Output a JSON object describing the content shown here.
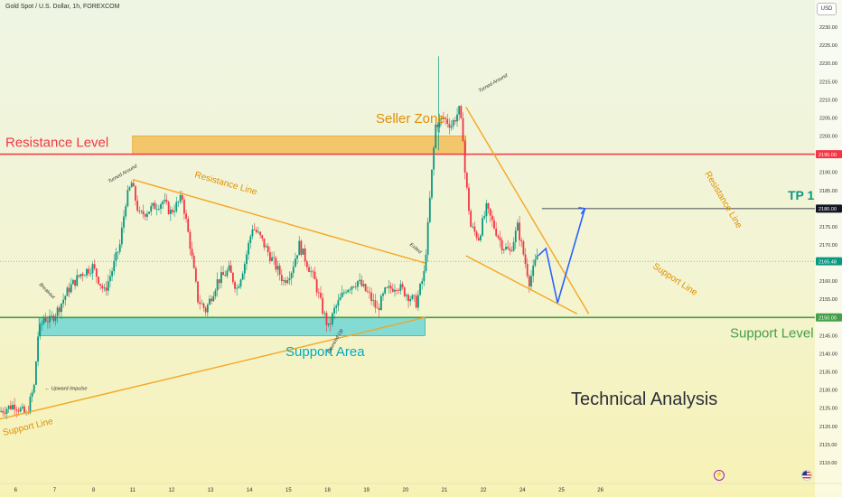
{
  "header": {
    "symbol_title": "Gold Spot / U.S. Dollar, 1h, FOREXCOM",
    "currency": "USD"
  },
  "chart_data": {
    "type": "candlestick",
    "x_unit": "day of month (March 2024)",
    "xlim": [
      5.6,
      26.5
    ],
    "ylim": [
      2105,
      2235
    ],
    "x_ticks": [
      {
        "label": "6",
        "x": 6
      },
      {
        "label": "7",
        "x": 7
      },
      {
        "label": "8",
        "x": 8
      },
      {
        "label": "11",
        "x": 9
      },
      {
        "label": "12",
        "x": 10
      },
      {
        "label": "13",
        "x": 11
      },
      {
        "label": "14",
        "x": 12
      },
      {
        "label": "15",
        "x": 13
      },
      {
        "label": "18",
        "x": 14
      },
      {
        "label": "19",
        "x": 15
      },
      {
        "label": "20",
        "x": 16
      },
      {
        "label": "21",
        "x": 17
      },
      {
        "label": "22",
        "x": 18
      },
      {
        "label": "24",
        "x": 19
      },
      {
        "label": "25",
        "x": 20
      },
      {
        "label": "26",
        "x": 21
      }
    ],
    "y_ticks": [
      2110,
      2115,
      2120,
      2125,
      2130,
      2135,
      2140,
      2145,
      2150,
      2155,
      2160,
      2165,
      2170,
      2175,
      2180,
      2185,
      2190,
      2195,
      2200,
      2205,
      2210,
      2215,
      2220,
      2225,
      2230
    ],
    "price_path": [
      [
        5.6,
        2124
      ],
      [
        6.0,
        2126
      ],
      [
        6.3,
        2123
      ],
      [
        6.5,
        2131
      ],
      [
        6.6,
        2145
      ],
      [
        6.75,
        2150
      ],
      [
        6.9,
        2149
      ],
      [
        7.1,
        2152
      ],
      [
        7.4,
        2158
      ],
      [
        7.7,
        2162
      ],
      [
        8.0,
        2164
      ],
      [
        8.3,
        2157
      ],
      [
        8.5,
        2163
      ],
      [
        8.7,
        2170
      ],
      [
        8.85,
        2182
      ],
      [
        9.0,
        2187
      ],
      [
        9.2,
        2178
      ],
      [
        9.5,
        2180
      ],
      [
        9.8,
        2182
      ],
      [
        10.0,
        2179
      ],
      [
        10.3,
        2183
      ],
      [
        10.5,
        2170
      ],
      [
        10.7,
        2155
      ],
      [
        10.9,
        2152
      ],
      [
        11.2,
        2160
      ],
      [
        11.5,
        2163
      ],
      [
        11.7,
        2158
      ],
      [
        11.9,
        2165
      ],
      [
        12.1,
        2175
      ],
      [
        12.3,
        2172
      ],
      [
        12.5,
        2168
      ],
      [
        12.7,
        2164
      ],
      [
        12.9,
        2160
      ],
      [
        13.1,
        2163
      ],
      [
        13.3,
        2170
      ],
      [
        13.5,
        2165
      ],
      [
        13.7,
        2160
      ],
      [
        13.9,
        2152
      ],
      [
        14.05,
        2147
      ],
      [
        14.2,
        2152
      ],
      [
        14.5,
        2158
      ],
      [
        14.8,
        2160
      ],
      [
        15.1,
        2156
      ],
      [
        15.3,
        2152
      ],
      [
        15.5,
        2157
      ],
      [
        15.8,
        2159
      ],
      [
        16.0,
        2157
      ],
      [
        16.3,
        2154
      ],
      [
        16.5,
        2162
      ],
      [
        16.6,
        2175
      ],
      [
        16.7,
        2190
      ],
      [
        16.8,
        2203
      ],
      [
        17.0,
        2205
      ],
      [
        17.2,
        2203
      ],
      [
        17.4,
        2207
      ],
      [
        17.5,
        2200
      ],
      [
        17.55,
        2190
      ],
      [
        17.7,
        2175
      ],
      [
        17.9,
        2172
      ],
      [
        18.1,
        2180
      ],
      [
        18.3,
        2175
      ],
      [
        18.5,
        2170
      ],
      [
        18.7,
        2168
      ],
      [
        18.9,
        2175
      ],
      [
        19.1,
        2165
      ],
      [
        19.2,
        2160
      ],
      [
        19.3,
        2163
      ],
      [
        19.4,
        2167
      ]
    ],
    "price_labels": [
      {
        "value": 2195.0,
        "text": "2195.00",
        "color": "#f23645"
      },
      {
        "value": 2180.0,
        "text": "2180.00",
        "color": "#131722"
      },
      {
        "value": 2165.48,
        "text": "2165.48",
        "color": "#089981"
      },
      {
        "value": 2150.0,
        "text": "2150.00",
        "color": "#43a047"
      }
    ],
    "annotations": {
      "resistance_level": {
        "label": "Resistance Level",
        "value": 2195,
        "color": "#f23645"
      },
      "support_level": {
        "label": "Support Level",
        "value": 2150,
        "color": "#43a047"
      },
      "seller_zone": {
        "label": "Seller Zone",
        "x_range": [
          9.0,
          17.55
        ],
        "y_range": [
          2195,
          2200
        ],
        "color": "#f5a623"
      },
      "support_area": {
        "label": "Support Area",
        "x_range": [
          6.6,
          16.5
        ],
        "y_range": [
          2145,
          2150
        ],
        "color": "#26c6da"
      },
      "support_line_main": {
        "label": "Support Line",
        "points": [
          [
            5.6,
            2122
          ],
          [
            16.5,
            2150
          ]
        ],
        "color": "#f5a623"
      },
      "resistance_line_main": {
        "label": "Resistance Line",
        "points": [
          [
            9.0,
            2188
          ],
          [
            16.5,
            2165
          ]
        ],
        "color": "#f5a623"
      },
      "resistance_line_2": {
        "label": "Resistance Line",
        "points": [
          [
            17.55,
            2208
          ],
          [
            20.7,
            2151
          ]
        ],
        "color": "#f5a623"
      },
      "support_line_2": {
        "label": "Support Line",
        "points": [
          [
            17.55,
            2167
          ],
          [
            20.4,
            2151
          ]
        ],
        "color": "#f5a623"
      },
      "projection": {
        "points": [
          [
            19.4,
            2167
          ],
          [
            19.6,
            2169
          ],
          [
            19.9,
            2154
          ],
          [
            20.6,
            2180
          ]
        ],
        "color": "#2962ff"
      },
      "tp1": {
        "label": "TP 1",
        "value": 2180,
        "color": "#089981"
      },
      "notes": [
        {
          "text": "Turned Around",
          "x": 8.4,
          "y": 2187
        },
        {
          "text": "Breakout",
          "x": 6.6,
          "y": 2159
        },
        {
          "text": "← Upward Impulse",
          "x": 6.75,
          "y": 2130
        },
        {
          "text": "Bounced Up",
          "x": 14.05,
          "y": 2140
        },
        {
          "text": "Exited",
          "x": 16.1,
          "y": 2170
        },
        {
          "text": "Turned Around",
          "x": 17.9,
          "y": 2212
        }
      ],
      "analysis_title": "Technical Analysis"
    }
  },
  "footer": {
    "flash_icon": "lightning-icon",
    "flag_icon": "us-flag-icon"
  }
}
